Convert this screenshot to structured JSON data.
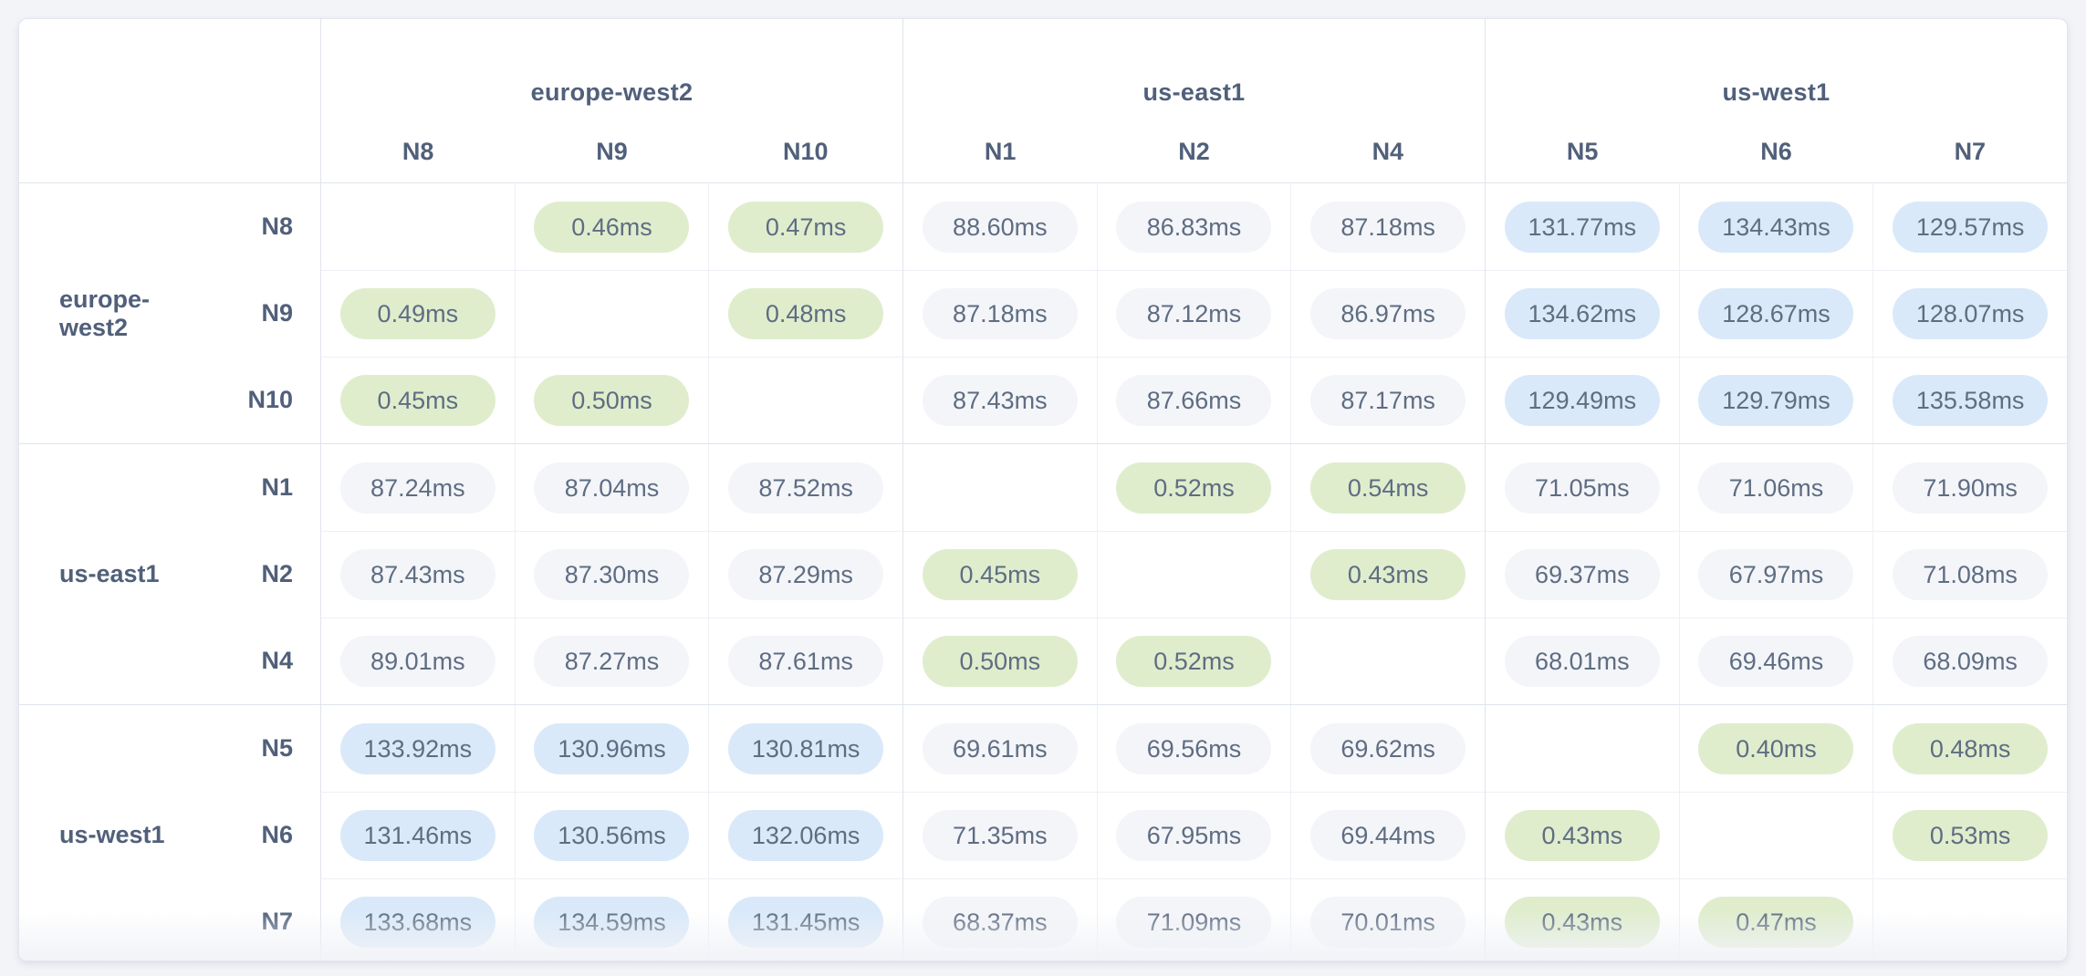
{
  "page": {
    "background": "#f3f4f8"
  },
  "matrix": {
    "unit": "ms",
    "value_colors": {
      "low": "#dfedcd",
      "mid": "#f4f5f9",
      "high": "#d9e9f9"
    },
    "thresholds": {
      "low_below_ms": 1,
      "high_above_ms": 100
    },
    "column_groups": [
      {
        "region": "europe-west2",
        "nodes": [
          "N8",
          "N9",
          "N10"
        ]
      },
      {
        "region": "us-east1",
        "nodes": [
          "N1",
          "N2",
          "N4"
        ]
      },
      {
        "region": "us-west1",
        "nodes": [
          "N5",
          "N6",
          "N7"
        ]
      }
    ],
    "row_groups": [
      {
        "region": "europe-west2",
        "rows": [
          {
            "node": "N8",
            "values": [
              null,
              "0.46ms",
              "0.47ms",
              "88.60ms",
              "86.83ms",
              "87.18ms",
              "131.77ms",
              "134.43ms",
              "129.57ms"
            ]
          },
          {
            "node": "N9",
            "values": [
              "0.49ms",
              null,
              "0.48ms",
              "87.18ms",
              "87.12ms",
              "86.97ms",
              "134.62ms",
              "128.67ms",
              "128.07ms"
            ]
          },
          {
            "node": "N10",
            "values": [
              "0.45ms",
              "0.50ms",
              null,
              "87.43ms",
              "87.66ms",
              "87.17ms",
              "129.49ms",
              "129.79ms",
              "135.58ms"
            ]
          }
        ]
      },
      {
        "region": "us-east1",
        "rows": [
          {
            "node": "N1",
            "values": [
              "87.24ms",
              "87.04ms",
              "87.52ms",
              null,
              "0.52ms",
              "0.54ms",
              "71.05ms",
              "71.06ms",
              "71.90ms"
            ]
          },
          {
            "node": "N2",
            "values": [
              "87.43ms",
              "87.30ms",
              "87.29ms",
              "0.45ms",
              null,
              "0.43ms",
              "69.37ms",
              "67.97ms",
              "71.08ms"
            ]
          },
          {
            "node": "N4",
            "values": [
              "89.01ms",
              "87.27ms",
              "87.61ms",
              "0.50ms",
              "0.52ms",
              null,
              "68.01ms",
              "69.46ms",
              "68.09ms"
            ]
          }
        ]
      },
      {
        "region": "us-west1",
        "rows": [
          {
            "node": "N5",
            "values": [
              "133.92ms",
              "130.96ms",
              "130.81ms",
              "69.61ms",
              "69.56ms",
              "69.62ms",
              null,
              "0.40ms",
              "0.48ms"
            ]
          },
          {
            "node": "N6",
            "values": [
              "131.46ms",
              "130.56ms",
              "132.06ms",
              "71.35ms",
              "67.95ms",
              "69.44ms",
              "0.43ms",
              null,
              "0.53ms"
            ]
          },
          {
            "node": "N7",
            "values": [
              "133.68ms",
              "134.59ms",
              "131.45ms",
              "68.37ms",
              "71.09ms",
              "70.01ms",
              "0.43ms",
              "0.47ms",
              null
            ]
          }
        ]
      }
    ]
  },
  "chart_data": {
    "type": "heatmap",
    "unit": "ms",
    "columns": [
      "N8",
      "N9",
      "N10",
      "N1",
      "N2",
      "N4",
      "N5",
      "N6",
      "N7"
    ],
    "column_regions": [
      "europe-west2",
      "europe-west2",
      "europe-west2",
      "us-east1",
      "us-east1",
      "us-east1",
      "us-west1",
      "us-west1",
      "us-west1"
    ],
    "rows": [
      "N8",
      "N9",
      "N10",
      "N1",
      "N2",
      "N4",
      "N5",
      "N6",
      "N7"
    ],
    "row_regions": [
      "europe-west2",
      "europe-west2",
      "europe-west2",
      "us-east1",
      "us-east1",
      "us-east1",
      "us-west1",
      "us-west1",
      "us-west1"
    ],
    "values": [
      [
        null,
        0.46,
        0.47,
        88.6,
        86.83,
        87.18,
        131.77,
        134.43,
        129.57
      ],
      [
        0.49,
        null,
        0.48,
        87.18,
        87.12,
        86.97,
        134.62,
        128.67,
        128.07
      ],
      [
        0.45,
        0.5,
        null,
        87.43,
        87.66,
        87.17,
        129.49,
        129.79,
        135.58
      ],
      [
        87.24,
        87.04,
        87.52,
        null,
        0.52,
        0.54,
        71.05,
        71.06,
        71.9
      ],
      [
        87.43,
        87.3,
        87.29,
        0.45,
        null,
        0.43,
        69.37,
        67.97,
        71.08
      ],
      [
        89.01,
        87.27,
        87.61,
        0.5,
        0.52,
        null,
        68.01,
        69.46,
        68.09
      ],
      [
        133.92,
        130.96,
        130.81,
        69.61,
        69.56,
        69.62,
        null,
        0.4,
        0.48
      ],
      [
        131.46,
        130.56,
        132.06,
        71.35,
        67.95,
        69.44,
        0.43,
        null,
        0.53
      ],
      [
        133.68,
        134.59,
        131.45,
        68.37,
        71.09,
        70.01,
        0.43,
        0.47,
        null
      ]
    ],
    "color_scale": {
      "low_intra_region": "#dfedcd",
      "mid": "#f4f5f9",
      "high": "#d9e9f9"
    },
    "legend_position": "none",
    "grid": true
  }
}
